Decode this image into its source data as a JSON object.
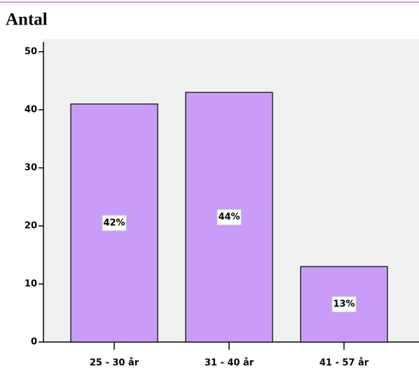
{
  "chart_data": {
    "type": "bar",
    "title": "Antal",
    "categories": [
      "25 - 30 år",
      "31 - 40 år",
      "41 - 57 år"
    ],
    "values": [
      41,
      43,
      13
    ],
    "percent_labels": [
      "42%",
      "44%",
      "13%"
    ],
    "color": "#c89cf8",
    "ylim": [
      0,
      50
    ],
    "yticks": [
      0,
      10,
      20,
      30,
      40,
      50
    ]
  }
}
